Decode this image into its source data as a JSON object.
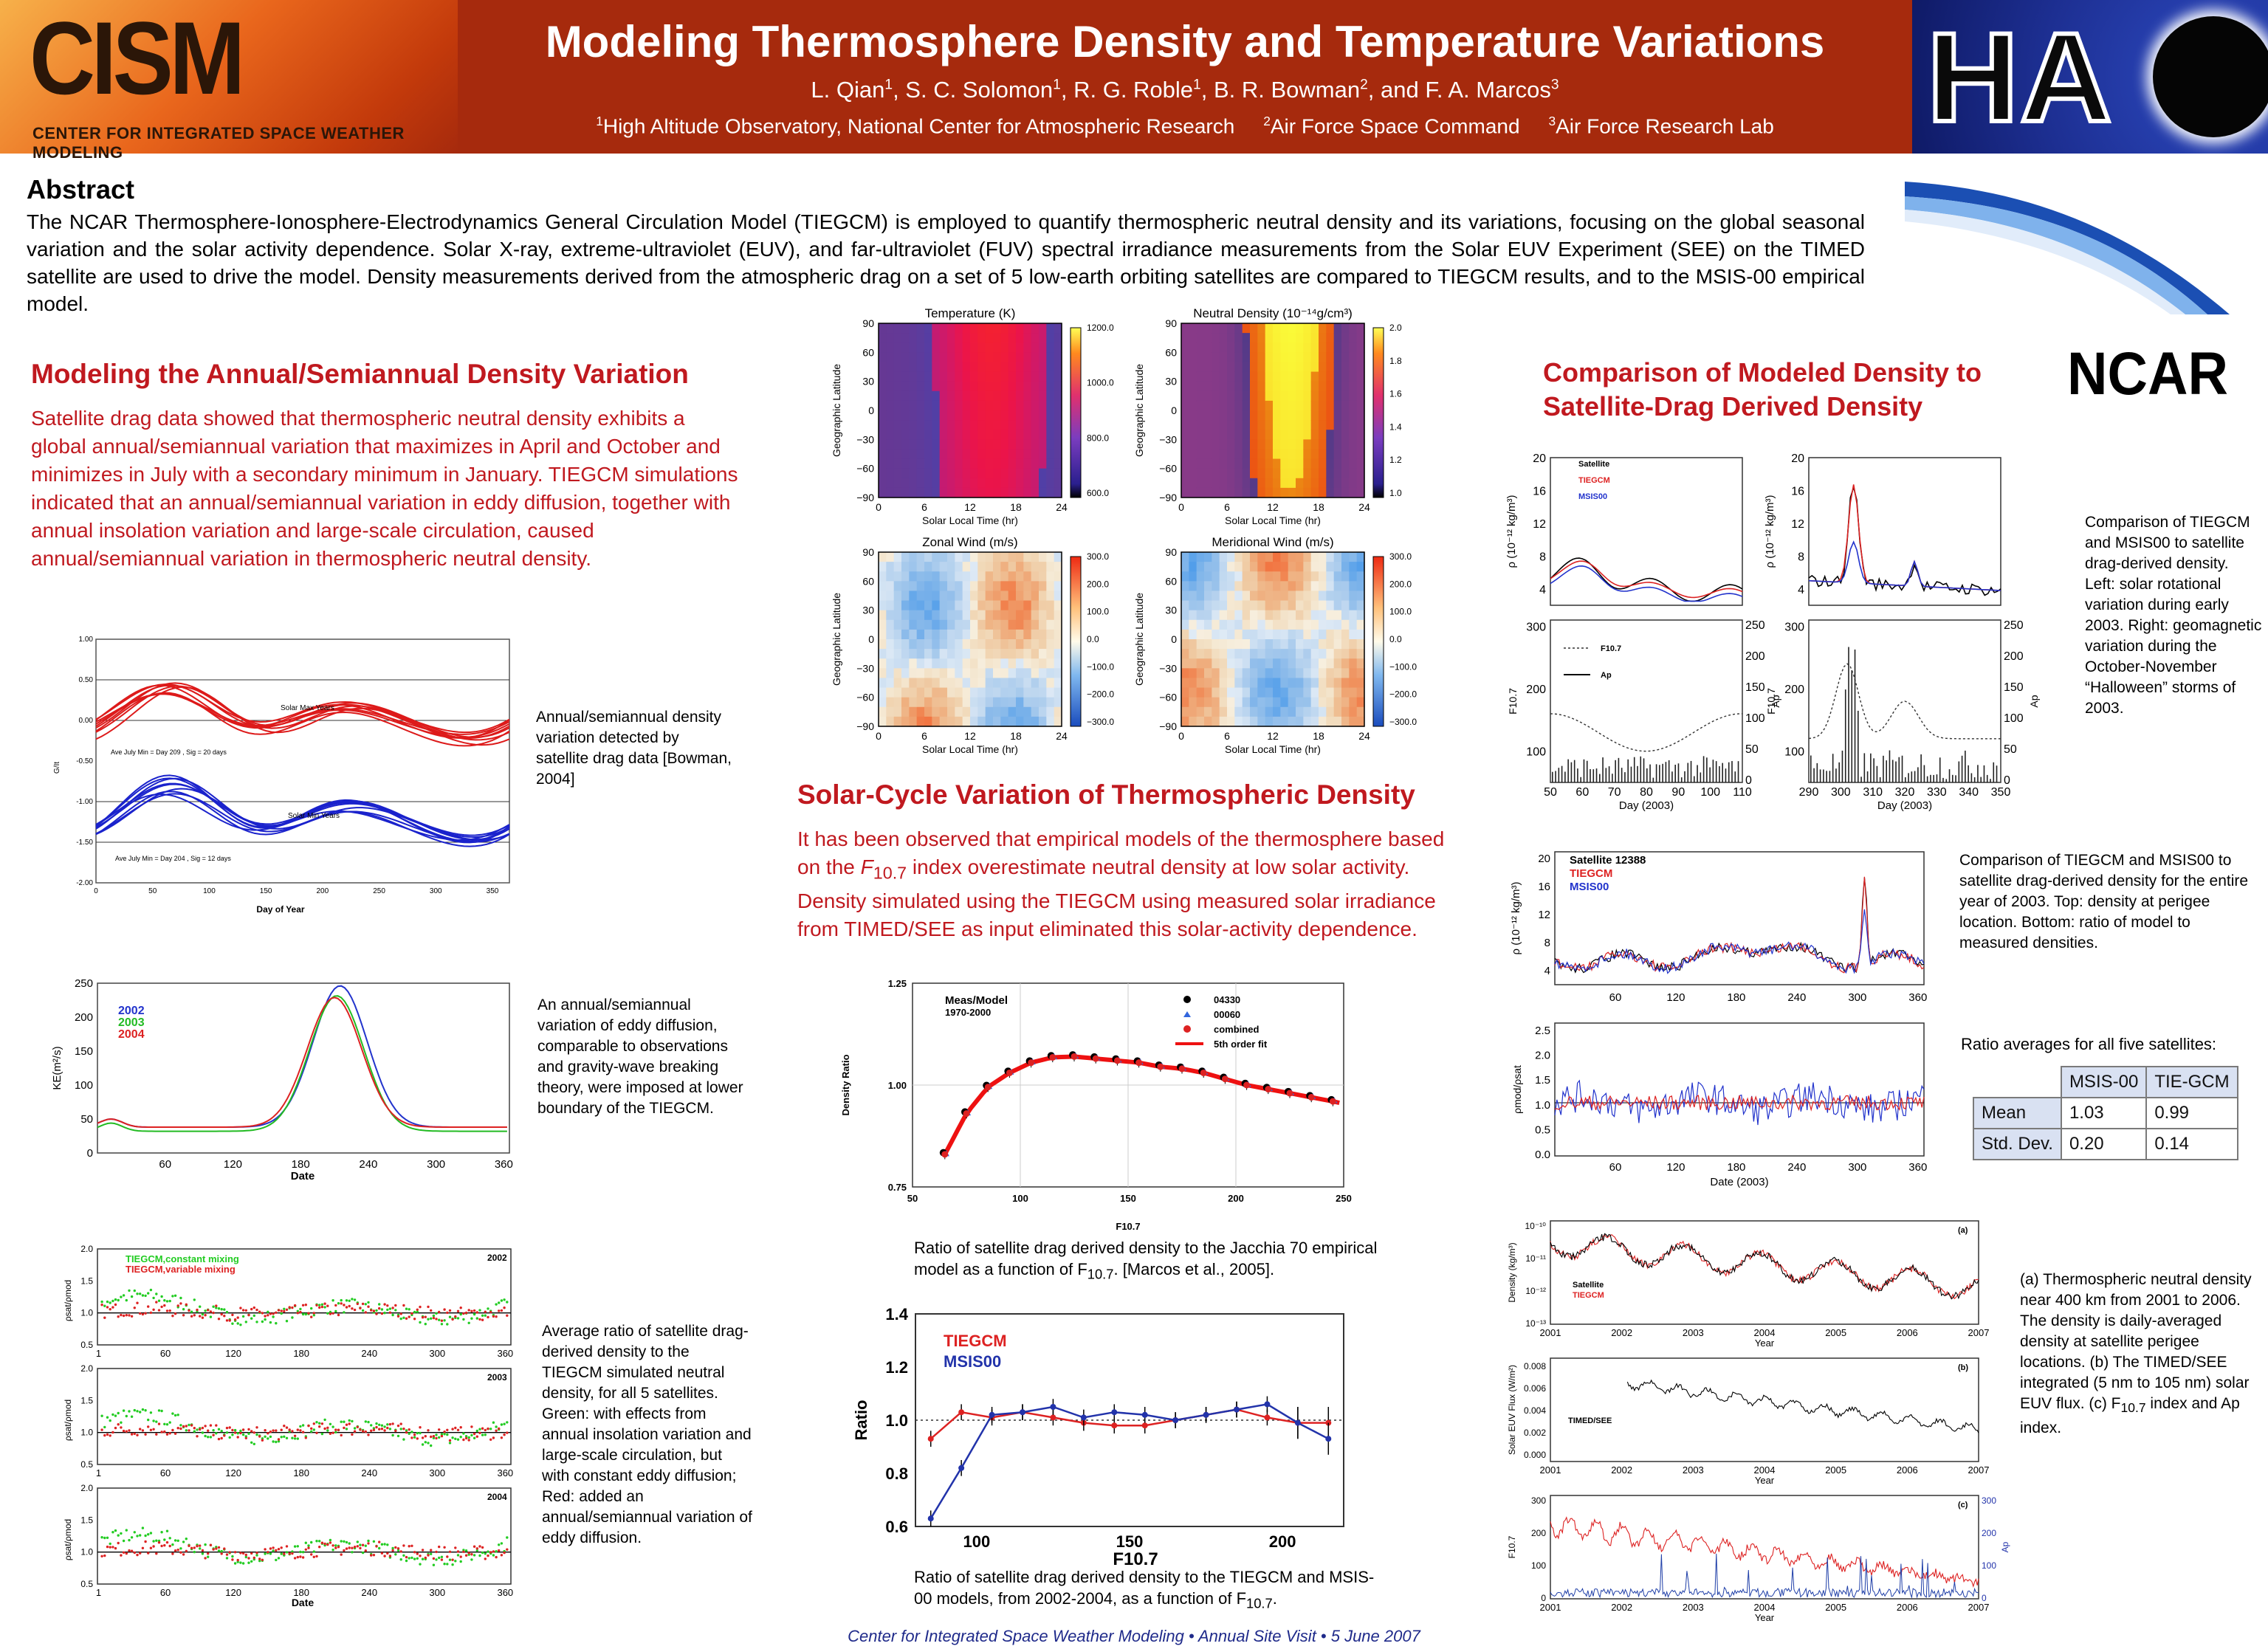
{
  "header": {
    "logo_left": "CISM",
    "logo_left_sub": "CENTER FOR INTEGRATED SPACE WEATHER MODELING",
    "logo_right": "HA",
    "title": "Modeling Thermosphere Density and Temperature Variations",
    "authors": [
      {
        "name": "L. Qian",
        "sup": "1"
      },
      {
        "name": "S. C. Solomon",
        "sup": "1"
      },
      {
        "name": "R. G. Roble",
        "sup": "1"
      },
      {
        "name": "B. R. Bowman",
        "sup": "2"
      },
      {
        "name": "F. A. Marcos",
        "sup": "3"
      }
    ],
    "affiliations": [
      {
        "sup": "1",
        "text": "High Altitude Observatory, National Center for Atmospheric Research"
      },
      {
        "sup": "2",
        "text": "Air Force Space Command"
      },
      {
        "sup": "3",
        "text": "Air Force Research Lab"
      }
    ]
  },
  "abstract": {
    "heading": "Abstract",
    "text": "The NCAR Thermosphere-Ionosphere-Electrodynamics General Circulation Model (TIEGCM) is employed to quantify thermospheric neutral density and its variations, focusing on the global seasonal variation and the solar activity dependence.  Solar X-ray, extreme-ultraviolet (EUV), and far-ultraviolet (FUV) spectral irradiance measurements from the Solar EUV Experiment (SEE) on the TIMED satellite are used to drive the model.  Density measurements derived from the atmospheric drag on a set of 5 low-earth orbiting satellites are compared to TIEGCM results, and to the MSIS-00 empirical model."
  },
  "ncar_logo": "NCAR",
  "section1": {
    "heading": "Modeling the Annual/Semiannual Density Variation",
    "text": "Satellite drag data showed that thermospheric neutral density exhibits a global annual/semiannual variation that maximizes in April and October and minimizes in July with a secondary minimum in January. TIEGCM simulations indicated that an annual/semiannual variation in eddy diffusion, together with annual insolation variation and large-scale circulation, caused annual/semiannual variation in thermospheric neutral density.",
    "cap1": "Annual/semiannual density variation detected by satellite drag data [Bowman, 2004]",
    "cap2": "An annual/semiannual variation of eddy diffusion, comparable to observations and gravity-wave breaking theory, were imposed at lower boundary of the TIEGCM.",
    "cap3": "Average ratio of satellite drag-derived density to the TIEGCM simulated neutral density, for all 5 satellites. Green: with effects from annual insolation variation and large-scale circulation, but with constant eddy diffusion; Red: added an annual/semiannual variation of eddy diffusion."
  },
  "section2": {
    "heading": "Solar-Cycle Variation of Thermospheric Density",
    "text_a": "It has been observed that empirical models of the thermosphere based on the ",
    "f107": "F",
    "f107_sub": "10.7",
    "text_b": " index overestimate neutral density at low solar activity.  Density simulated using the TIEGCM using measured solar irradiance from TIMED/SEE as input eliminated this solar-activity dependence.",
    "cap1_a": "Ratio of satellite drag derived density to the Jacchia 70 empirical model as a function of F",
    "cap1_b": ". [Marcos et al., 2005].",
    "cap2_a": "Ratio of satellite drag derived density to the TIEGCM and MSIS-00 models, from 2002-2004, as a function of F",
    "cap2_b": "."
  },
  "section3": {
    "heading_l1": "Comparison of Modeled Density to",
    "heading_l2": "Satellite-Drag Derived Density",
    "cap1": "Comparison of TIEGCM and  MSIS00 to satellite drag-derived density.  Left: solar rotational variation during early 2003.  Right: geomagnetic variation during the October-November “Halloween” storms of 2003.",
    "cap2": "Comparison of TIEGCM and  MSIS00 to satellite drag-derived density for the entire year of 2003. Top: density at perigee location.  Bottom: ratio of model to measured densities.",
    "table_title": "Ratio averages for all five satellites:",
    "table_cols": [
      "",
      "MSIS-00",
      "TIE-GCM"
    ],
    "table_rows": [
      [
        "Mean",
        "1.03",
        "0.99"
      ],
      [
        "Std. Dev.",
        "0.20",
        "0.14"
      ]
    ],
    "cap3_a": "(a) Thermospheric neutral density near 400 km from 2001 to 2006. The density is daily-averaged density at satellite perigee locations. (b) The TIMED/SEE  integrated (5 nm to 105 nm) solar EUV flux. (c) F",
    "cap3_b": " index and Ap index."
  },
  "footer": "Center for Integrated Space Weather Modeling     •     Annual Site Visit     •     5 June 2007",
  "chart_data": [
    {
      "type": "heatmap",
      "title": "Temperature (K)",
      "xlabel": "Solar Local Time (hr)",
      "ylabel": "Geographic Latitude",
      "x_ticks": [
        "0",
        "6",
        "12",
        "18",
        "24"
      ],
      "y_ticks": [
        "90",
        "60",
        "30",
        "0",
        "−30",
        "−60",
        "−90"
      ],
      "colorbar_ticks": [
        "1200.0",
        "1000.0",
        "800.0",
        "600.0"
      ]
    },
    {
      "type": "heatmap",
      "title": "Neutral Density (10⁻¹⁴g/cm³)",
      "xlabel": "Solar Local Time (hr)",
      "ylabel": "Geographic Latitude",
      "x_ticks": [
        "0",
        "6",
        "12",
        "18",
        "24"
      ],
      "y_ticks": [
        "90",
        "60",
        "30",
        "0",
        "−30",
        "−60",
        "−90"
      ],
      "colorbar_ticks": [
        "2.0",
        "1.8",
        "1.6",
        "1.4",
        "1.2",
        "1.0"
      ]
    },
    {
      "type": "heatmap",
      "title": "Zonal Wind (m/s)",
      "xlabel": "Solar Local Time (hr)",
      "ylabel": "Geographic Latitude",
      "x_ticks": [
        "0",
        "6",
        "12",
        "18",
        "24"
      ],
      "y_ticks": [
        "90",
        "60",
        "30",
        "0",
        "−30",
        "−60",
        "−90"
      ],
      "colorbar_ticks": [
        "300.0",
        "200.0",
        "100.0",
        "0.0",
        "−100.0",
        "−200.0",
        "−300.0"
      ]
    },
    {
      "type": "heatmap",
      "title": "Meridional Wind (m/s)",
      "xlabel": "Solar Local Time (hr)",
      "ylabel": "Geographic Latitude",
      "x_ticks": [
        "0",
        "6",
        "12",
        "18",
        "24"
      ],
      "y_ticks": [
        "90",
        "60",
        "30",
        "0",
        "−30",
        "−60",
        "−90"
      ],
      "colorbar_ticks": [
        "300.0",
        "200.0",
        "100.0",
        "0.0",
        "−100.0",
        "−200.0",
        "−300.0"
      ]
    },
    {
      "type": "line",
      "xlabel": "Day of Year",
      "ylabel": "G/It",
      "xlim": [
        0,
        365
      ],
      "ylim": [
        -2.0,
        1.0
      ],
      "x_ticks": [
        "0",
        "50",
        "100",
        "150",
        "200",
        "250",
        "300",
        "350"
      ],
      "y_ticks": [
        "1.00",
        "0.50",
        "0.00",
        "-0.50",
        "-1.00",
        "-1.50",
        "-2.00"
      ],
      "annotations": [
        "Solar Max Years",
        "Ave July Min = Day 209 ,  Sig = 20 days",
        "Solar Min Years",
        "Ave July Min = Day 204 ,  Sig = 12 days"
      ]
    },
    {
      "type": "line",
      "xlabel": "Date",
      "ylabel": "KE(m²/s)",
      "xlim": [
        0,
        365
      ],
      "ylim": [
        0,
        250
      ],
      "x_ticks": [
        "60",
        "120",
        "180",
        "240",
        "300",
        "360"
      ],
      "y_ticks": [
        "250",
        "200",
        "150",
        "100",
        "50",
        "0"
      ],
      "series": [
        {
          "name": "2002",
          "color": "#2233cc",
          "peak_day": 215,
          "peak": 242
        },
        {
          "name": "2003",
          "color": "#22bb22",
          "peak_day": 212,
          "peak": 232
        },
        {
          "name": "2004",
          "color": "#dd2222",
          "peak_day": 210,
          "peak": 222
        }
      ]
    },
    {
      "type": "scatter",
      "xlabel": "Date",
      "ylabel": "ρsat/ρmod",
      "ylim": [
        0.5,
        2.0
      ],
      "panels": [
        "2002",
        "2003",
        "2004"
      ],
      "x_ticks": [
        "1",
        "60",
        "120",
        "180",
        "240",
        "300",
        "360"
      ],
      "y_ticks": [
        "2.0",
        "1.5",
        "1.0",
        "0.5"
      ],
      "series": [
        {
          "name": "TIEGCM,constant mixing",
          "color": "#22cc22"
        },
        {
          "name": "TIEGCM,variable mixing",
          "color": "#dd2222"
        }
      ]
    },
    {
      "type": "scatter",
      "title": "Meas/Model",
      "subtitle": "1970-2000",
      "xlabel": "F10.7",
      "ylabel": "Density Ratio",
      "xlim": [
        50,
        250
      ],
      "ylim": [
        0.75,
        1.25
      ],
      "x_ticks": [
        "50",
        "100",
        "150",
        "200",
        "250"
      ],
      "y_ticks": [
        "1.25",
        "1.00",
        "0.75"
      ],
      "series": [
        {
          "name": "04330",
          "color": "#000000"
        },
        {
          "name": "00060",
          "color": "#3366dd"
        },
        {
          "name": "combined",
          "color": "#dd2222"
        },
        {
          "name": "5th order fit",
          "color": "#ee1111"
        }
      ],
      "x": [
        65,
        75,
        85,
        95,
        105,
        115,
        125,
        135,
        145,
        155,
        165,
        175,
        185,
        195,
        205,
        215,
        225,
        235,
        245
      ],
      "y": [
        0.83,
        0.93,
        0.995,
        1.03,
        1.055,
        1.068,
        1.07,
        1.065,
        1.06,
        1.055,
        1.045,
        1.04,
        1.03,
        1.015,
        1.0,
        0.99,
        0.98,
        0.97,
        0.96
      ]
    },
    {
      "type": "line",
      "xlabel": "F10.7",
      "ylabel": "Ratio",
      "xlim": [
        80,
        220
      ],
      "ylim": [
        0.6,
        1.4
      ],
      "x_ticks": [
        "100",
        "150",
        "200"
      ],
      "y_ticks": [
        "1.4",
        "1.2",
        "1.0",
        "0.8",
        "0.6"
      ],
      "x": [
        85,
        95,
        105,
        115,
        125,
        135,
        145,
        155,
        165,
        175,
        185,
        195,
        205,
        215
      ],
      "series": [
        {
          "name": "TIEGCM",
          "color": "#dd2222",
          "values": [
            0.93,
            1.03,
            1.01,
            1.03,
            1.01,
            0.99,
            0.98,
            0.98,
            1.0,
            1.02,
            1.04,
            1.01,
            0.99,
            0.99
          ]
        },
        {
          "name": "MSIS00",
          "color": "#2233aa",
          "values": [
            0.63,
            0.82,
            1.02,
            1.03,
            1.05,
            1.01,
            1.03,
            1.02,
            1.0,
            1.02,
            1.04,
            1.06,
            0.99,
            0.93
          ]
        }
      ]
    },
    {
      "type": "line",
      "ylabel": "ρ (10⁻¹² kg/m³)",
      "ylim": [
        2,
        20
      ],
      "y_ticks": [
        "20",
        "16",
        "12",
        "8",
        "4"
      ],
      "series": [
        {
          "name": "Satellite",
          "color": "#000000"
        },
        {
          "name": "TIEGCM",
          "color": "#dd2222"
        },
        {
          "name": "MSIS00",
          "color": "#2233cc"
        }
      ],
      "lower_panel": {
        "xlabel": "Day (2003)",
        "x_ticks": [
          "50",
          "60",
          "70",
          "80",
          "90",
          "100",
          "110"
        ],
        "y_ticks_left": [
          "300",
          "200",
          "100"
        ],
        "y_ticks_right": [
          "250",
          "200",
          "150",
          "100",
          "50",
          "0"
        ],
        "ylabel_left": "F10.7",
        "ylabel_right": "Ap",
        "series": [
          {
            "name": "F10.7"
          },
          {
            "name": "Ap"
          }
        ]
      }
    },
    {
      "type": "line",
      "ylabel": "ρ (10⁻¹² kg/m³)",
      "ylim": [
        2,
        20
      ],
      "y_ticks": [
        "20",
        "16",
        "12",
        "8",
        "4"
      ],
      "lower_panel": {
        "xlabel": "Day (2003)",
        "x_ticks": [
          "290",
          "300",
          "310",
          "320",
          "330",
          "340",
          "350"
        ],
        "y_ticks_left": [
          "300",
          "200",
          "100"
        ],
        "y_ticks_right": [
          "250",
          "200",
          "150",
          "100",
          "50",
          "0"
        ],
        "ylabel_left": "F10.7",
        "ylabel_right": "Ap"
      }
    },
    {
      "type": "line",
      "ylabel": "ρ (10⁻¹² kg/m³)",
      "y_ticks": [
        "20",
        "16",
        "12",
        "8",
        "4"
      ],
      "x_ticks": [
        "60",
        "120",
        "180",
        "240",
        "300",
        "360"
      ],
      "series": [
        {
          "name": "Satellite 12388",
          "color": "#000000"
        },
        {
          "name": "TIEGCM",
          "color": "#dd2222"
        },
        {
          "name": "MSIS00",
          "color": "#2233cc"
        }
      ],
      "lower_panel": {
        "xlabel": "Date (2003)",
        "ylabel": "ρmod/ρsat",
        "y_ticks": [
          "2.5",
          "2.0",
          "1.5",
          "1.0",
          "0.5",
          "0.0"
        ],
        "x_ticks": [
          "60",
          "120",
          "180",
          "240",
          "300",
          "360"
        ]
      }
    },
    {
      "type": "line",
      "panels": [
        "(a)",
        "(b)",
        "(c)"
      ],
      "x_ticks": [
        "2001",
        "2002",
        "2003",
        "2004",
        "2005",
        "2006",
        "2007"
      ],
      "xlabel": "Year",
      "a": {
        "ylabel": "Density (kg/m³)",
        "y_ticks": [
          "10⁻¹⁰",
          "10⁻¹¹",
          "10⁻¹²",
          "10⁻¹³"
        ],
        "series": [
          {
            "name": "Satellite"
          },
          {
            "name": "TIEGCM"
          }
        ]
      },
      "b": {
        "ylabel": "Solar EUV Flux (W/m²)",
        "y_ticks": [
          "0.008",
          "0.006",
          "0.004",
          "0.002",
          "0.000"
        ],
        "label": "TIMED/SEE"
      },
      "c": {
        "ylabel_left": "F10.7",
        "ylabel_right": "Ap",
        "y_ticks_left": [
          "300",
          "200",
          "100",
          "0"
        ],
        "y_ticks_right": [
          "300",
          "200",
          "100",
          "0"
        ]
      }
    }
  ]
}
